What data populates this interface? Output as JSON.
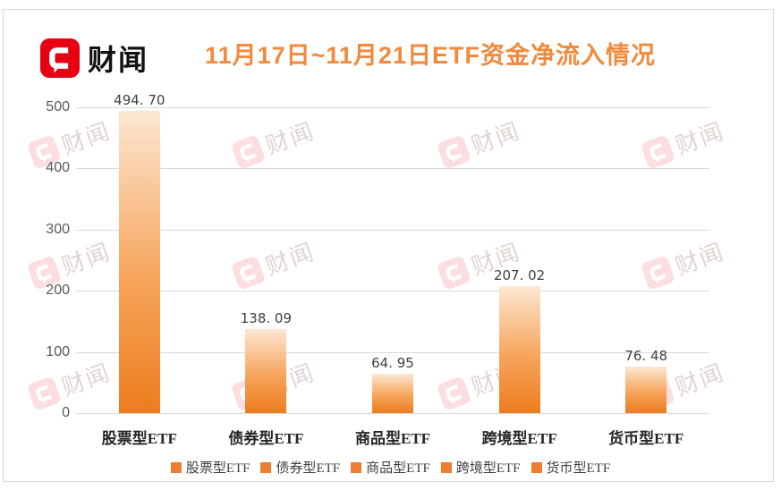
{
  "header": {
    "logo_text": "财闻",
    "title": "11月17日~11月21日ETF资金净流入情况"
  },
  "watermark": {
    "text": "财闻"
  },
  "chart_data": {
    "type": "bar",
    "title": "11月17日~11月21日ETF资金净流入情况",
    "categories": [
      "股票型ETF",
      "债券型ETF",
      "商品型ETF",
      "跨境型ETF",
      "货币型ETF"
    ],
    "values": [
      494.7,
      138.09,
      64.95,
      207.02,
      76.48
    ],
    "value_labels": [
      "494. 70",
      "138. 09",
      "64. 95",
      "207. 02",
      "76. 48"
    ],
    "xlabel": "",
    "ylabel": "",
    "ylim": [
      0,
      500
    ],
    "yticks": [
      0,
      100,
      200,
      300,
      400,
      500
    ],
    "grid": true,
    "legend_position": "bottom",
    "legend": [
      "股票型ETF",
      "债券型ETF",
      "商品型ETF",
      "跨境型ETF",
      "货币型ETF"
    ]
  },
  "colors": {
    "title": "#f2893c",
    "bar_gradient_top": "#fce7d2",
    "bar_gradient_bottom": "#ed7c1e",
    "legend_swatch": "#ed7d31",
    "logo_red": "#e60012",
    "gridline": "#d9d9d9",
    "axis_text": "#595959",
    "watermark_pink": "rgba(230,0,18,0.13)"
  }
}
